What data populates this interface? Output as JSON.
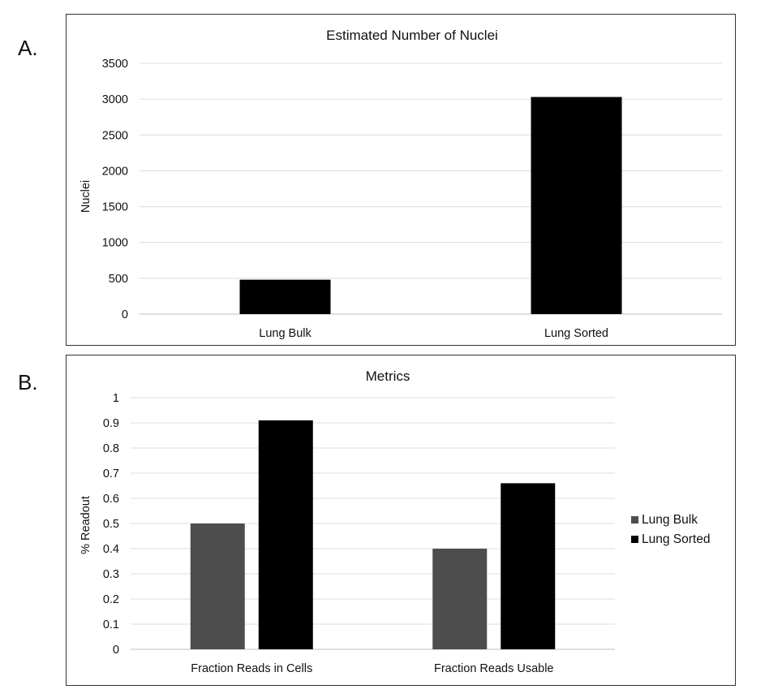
{
  "panels": {
    "a_label": "A.",
    "b_label": "B."
  },
  "chart_data": [
    {
      "type": "bar",
      "title": "Estimated Number of Nuclei",
      "xlabel": "",
      "ylabel": "Nuclei",
      "categories": [
        "Lung Bulk",
        "Lung Sorted"
      ],
      "values": [
        480,
        3030
      ],
      "ylim": [
        0,
        3500
      ],
      "yticks": [
        0,
        500,
        1000,
        1500,
        2000,
        2500,
        3000,
        3500
      ],
      "grid": true,
      "legend": "none",
      "color": "#000000"
    },
    {
      "type": "bar",
      "title": "Metrics",
      "xlabel": "",
      "ylabel": "% Readout",
      "categories": [
        "Fraction Reads in Cells",
        "Fraction Reads Usable"
      ],
      "series": [
        {
          "name": "Lung Bulk",
          "values": [
            0.5,
            0.4
          ],
          "color": "#4d4d4d"
        },
        {
          "name": "Lung Sorted",
          "values": [
            0.91,
            0.66
          ],
          "color": "#000000"
        }
      ],
      "ylim": [
        0,
        1
      ],
      "yticks": [
        0,
        0.1,
        0.2,
        0.3,
        0.4,
        0.5,
        0.6,
        0.7,
        0.8,
        0.9,
        1
      ],
      "ytick_labels": [
        "0",
        "0.1",
        "0.2",
        "0.3",
        "0.4",
        "0.5",
        "0.6",
        "0.7",
        "0.8",
        "0.9",
        "1"
      ],
      "grid": true,
      "legend": "right"
    }
  ]
}
